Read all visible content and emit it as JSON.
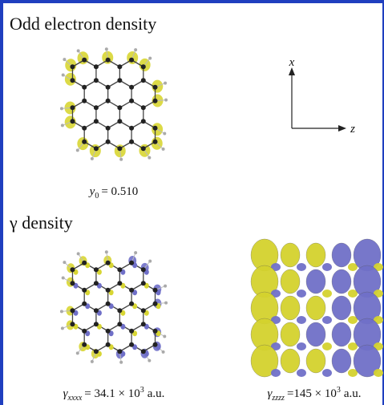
{
  "panel_top": {
    "title": "Odd electron density",
    "axes": {
      "vertical": "x",
      "horizontal": "z"
    },
    "caption": {
      "symbol": "y",
      "subscript": "0",
      "relation": "= 0.510"
    }
  },
  "panel_bottom": {
    "title": "γ density",
    "left_caption": {
      "symbol": "γ",
      "subscript": "xxxx",
      "relation": "= 34.1 × 10",
      "superscript": "3",
      "unit": "a.u."
    },
    "right_caption": {
      "symbol": "γ",
      "subscript": "zzzz",
      "relation": "=145 × 10",
      "superscript": "3",
      "unit": "a.u."
    }
  }
}
